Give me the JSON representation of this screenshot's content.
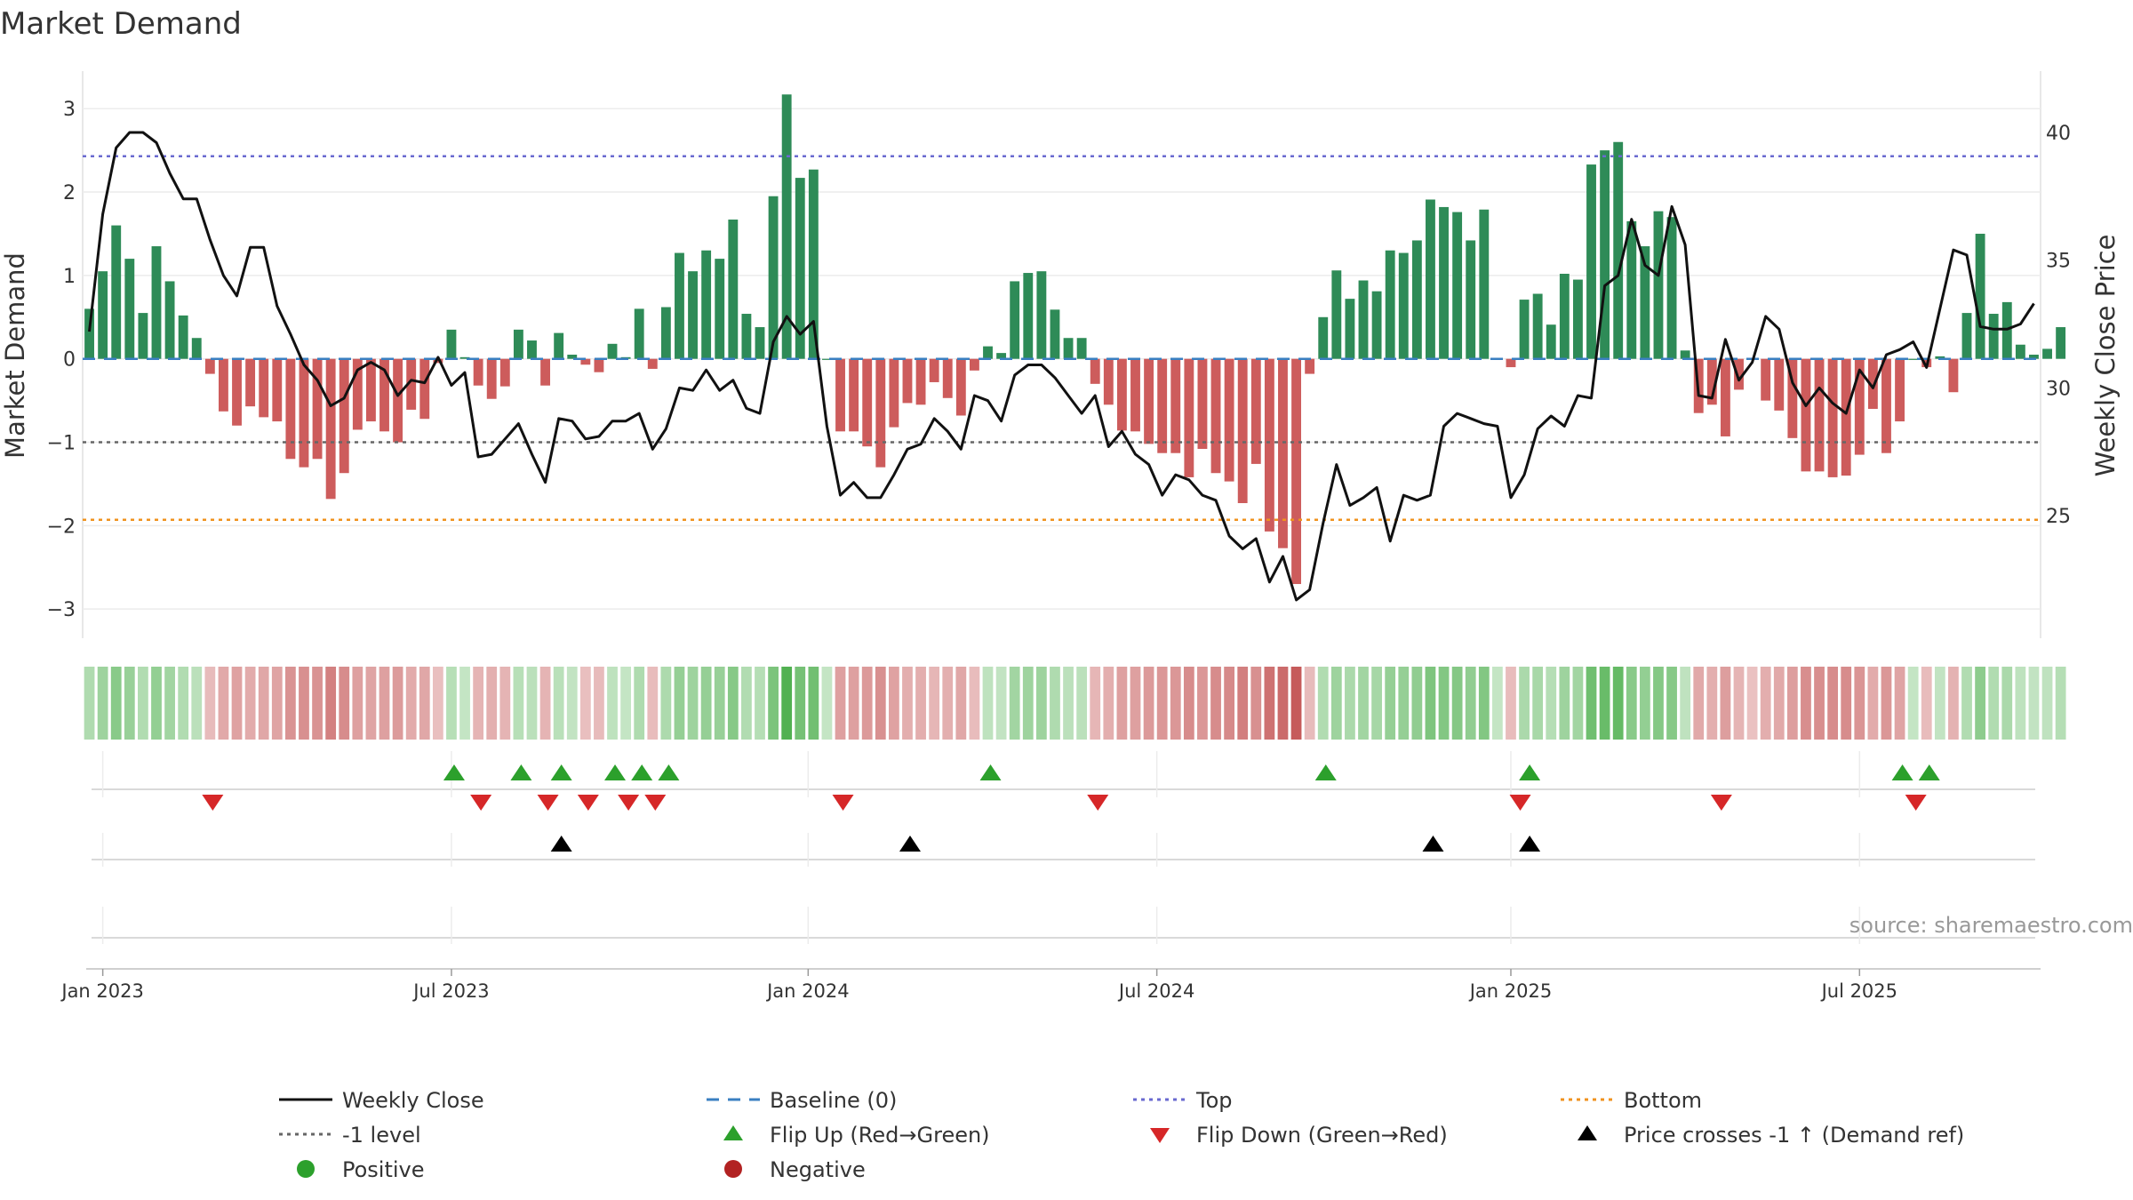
{
  "chart_data": {
    "type": "bar",
    "title": "Market Demand",
    "ylabel": "Market Demand",
    "y2label": "Weekly Close Price",
    "ylim": [
      -3.35,
      3.45
    ],
    "y2lim": [
      20.2,
      42.4
    ],
    "yticks": [
      3,
      2,
      1,
      0,
      -1,
      -2,
      -3
    ],
    "ytick_labels": [
      "3",
      "2",
      "1",
      "0",
      "−1",
      "−2",
      "−3"
    ],
    "y2ticks": [
      40,
      35,
      30,
      25
    ],
    "y2tick_labels": [
      "40",
      "35",
      "30",
      "25"
    ],
    "x_start": "2022-12-26",
    "weeks": 146,
    "date_ticks": [
      {
        "label": "Jan 2023",
        "week": 1
      },
      {
        "label": "Jul 2023",
        "week": 27
      },
      {
        "label": "Jan 2024",
        "week": 53.6
      },
      {
        "label": "Jul 2024",
        "week": 79.6
      },
      {
        "label": "Jan 2025",
        "week": 106
      },
      {
        "label": "Jul 2025",
        "week": 132
      }
    ],
    "reference_lines": {
      "top": 2.43,
      "bottom": -1.93,
      "minus_one": -1,
      "baseline": 0
    },
    "colors": {
      "positive": "#2e8b57",
      "negative": "#cd5c5c",
      "price": "#111111",
      "top": "#6a6ad0",
      "bottom": "#f0921e",
      "minus_one": "#666666",
      "baseline": "#3a7fc1",
      "flip_up": "#2ca02c",
      "flip_down": "#d62728",
      "cross": "#000000",
      "pos_marker": "#2ca02c",
      "neg_marker": "#b22222"
    },
    "demand": [
      0.6,
      1.05,
      1.6,
      1.2,
      0.55,
      1.35,
      0.93,
      0.52,
      0.25,
      -0.18,
      -0.63,
      -0.8,
      -0.57,
      -0.7,
      -0.75,
      -1.2,
      -1.3,
      -1.2,
      -1.68,
      -1.37,
      -0.85,
      -0.75,
      -0.87,
      -1.0,
      -0.61,
      -0.72,
      -0.05,
      0.35,
      0.02,
      -0.32,
      -0.48,
      -0.33,
      0.35,
      0.22,
      -0.32,
      0.31,
      0.05,
      -0.07,
      -0.16,
      0.18,
      0.02,
      0.6,
      -0.12,
      0.62,
      1.27,
      1.05,
      1.3,
      1.2,
      1.67,
      0.54,
      0.38,
      1.95,
      3.17,
      2.17,
      2.27,
      0.0,
      -0.87,
      -0.87,
      -1.05,
      -1.3,
      -0.82,
      -0.53,
      -0.55,
      -0.28,
      -0.47,
      -0.68,
      -0.14,
      0.15,
      0.07,
      0.93,
      1.03,
      1.05,
      0.59,
      0.25,
      0.25,
      -0.3,
      -0.55,
      -0.86,
      -0.87,
      -1.02,
      -1.13,
      -1.13,
      -1.42,
      -1.08,
      -1.37,
      -1.47,
      -1.73,
      -1.26,
      -2.07,
      -2.27,
      -2.7,
      -0.18,
      0.5,
      1.06,
      0.72,
      0.94,
      0.81,
      1.3,
      1.27,
      1.42,
      1.91,
      1.82,
      1.76,
      1.42,
      1.79,
      0.0,
      -0.1,
      0.71,
      0.78,
      0.41,
      1.02,
      0.95,
      2.33,
      2.5,
      2.6,
      1.65,
      1.35,
      1.77,
      1.7,
      0.1,
      -0.65,
      -0.55,
      -0.93,
      -0.37,
      -0.01,
      -0.5,
      -0.62,
      -0.95,
      -1.35,
      -1.35,
      -1.42,
      -1.4,
      -1.15,
      -0.6,
      -1.13,
      -0.75,
      0.0,
      -0.1,
      0.03,
      -0.4,
      0.55,
      1.5,
      0.54,
      0.68,
      0.17,
      0.05,
      0.12,
      0.38
    ],
    "price": [
      32.2,
      36.8,
      39.4,
      40.0,
      40.0,
      39.6,
      38.4,
      37.4,
      37.4,
      35.8,
      34.4,
      33.6,
      35.5,
      35.5,
      33.2,
      32.1,
      30.9,
      30.3,
      29.3,
      29.6,
      30.7,
      31.0,
      30.7,
      29.7,
      30.3,
      30.2,
      31.2,
      30.1,
      30.6,
      27.3,
      27.4,
      28.0,
      28.6,
      27.4,
      26.3,
      28.8,
      28.7,
      28.0,
      28.1,
      28.7,
      28.7,
      29.0,
      27.6,
      28.4,
      30.0,
      29.9,
      30.7,
      29.9,
      30.3,
      29.2,
      29.0,
      31.8,
      32.8,
      32.1,
      32.6,
      28.5,
      25.8,
      26.3,
      25.7,
      25.7,
      26.6,
      27.6,
      27.8,
      28.8,
      28.3,
      27.6,
      29.7,
      29.5,
      28.7,
      30.5,
      30.9,
      30.9,
      30.4,
      29.7,
      29.0,
      29.7,
      27.7,
      28.3,
      27.4,
      27.0,
      25.8,
      26.6,
      26.4,
      25.8,
      25.6,
      24.2,
      23.7,
      24.1,
      22.4,
      23.4,
      21.7,
      22.1,
      24.7,
      27.0,
      25.4,
      25.7,
      26.1,
      24.0,
      25.8,
      25.6,
      25.8,
      28.5,
      29.0,
      28.8,
      28.6,
      28.5,
      25.7,
      26.6,
      28.4,
      28.9,
      28.5,
      29.7,
      29.6,
      34.0,
      34.4,
      36.6,
      34.8,
      34.4,
      37.1,
      35.6,
      29.7,
      29.6,
      31.9,
      30.3,
      31.0,
      32.8,
      32.3,
      30.2,
      29.3,
      30.0,
      29.4,
      29.0,
      30.7,
      30.0,
      31.3,
      31.5,
      31.8,
      30.8,
      33.1,
      35.4,
      35.2,
      32.4,
      32.3,
      32.3,
      32.5,
      33.3
    ],
    "flip_up_weeks": [
      27.2,
      32.2,
      35.2,
      39.2,
      41.2,
      43.2,
      67.2,
      92.2,
      107.4,
      135.2,
      137.2
    ],
    "flip_down_weeks": [
      9.2,
      29.2,
      34.2,
      37.2,
      40.2,
      42.2,
      56.2,
      75.2,
      106.7,
      121.7,
      136.2
    ],
    "cross_weeks": [
      35.2,
      61.2,
      100.2,
      107.4
    ]
  },
  "legend": [
    {
      "label": "Weekly Close",
      "symbol": "line"
    },
    {
      "label": "Baseline (0)",
      "symbol": "dash"
    },
    {
      "label": "Top",
      "symbol": "dot"
    },
    {
      "label": "Bottom",
      "symbol": "dot"
    },
    {
      "label": "-1 level",
      "symbol": "dot"
    },
    {
      "label": "Flip Up (Red→Green)",
      "symbol": "triangle-up"
    },
    {
      "label": "Flip Down (Green→Red)",
      "symbol": "triangle-down"
    },
    {
      "label": "Price crosses -1 ↑ (Demand ref)",
      "symbol": "triangle-up"
    },
    {
      "label": "Positive",
      "symbol": "circle"
    },
    {
      "label": "Negative",
      "symbol": "circle"
    }
  ],
  "source": "source: sharemaestro.com"
}
